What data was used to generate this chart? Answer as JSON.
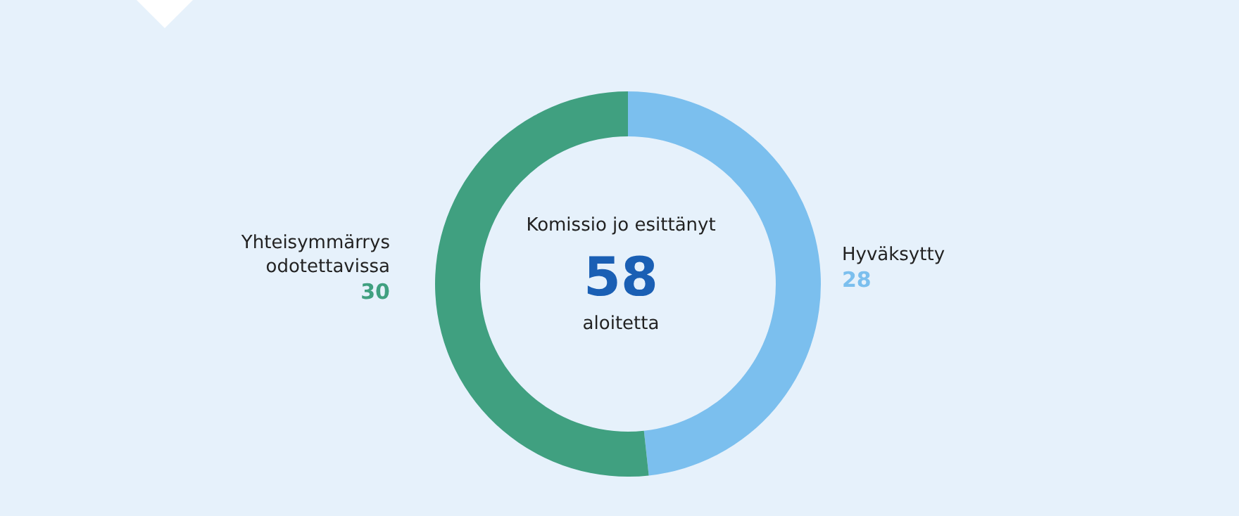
{
  "chart_data": {
    "type": "donut",
    "categories": [
      "Hyväksytty",
      "Yhteisymmärrys\nodotettavissa"
    ],
    "values": [
      28,
      30
    ],
    "colors": [
      "#7bbfee",
      "#40a080"
    ],
    "data_labels": true,
    "annotations": [
      "Komissio jo esittänyt",
      "58",
      "aloitetta"
    ]
  }
}
